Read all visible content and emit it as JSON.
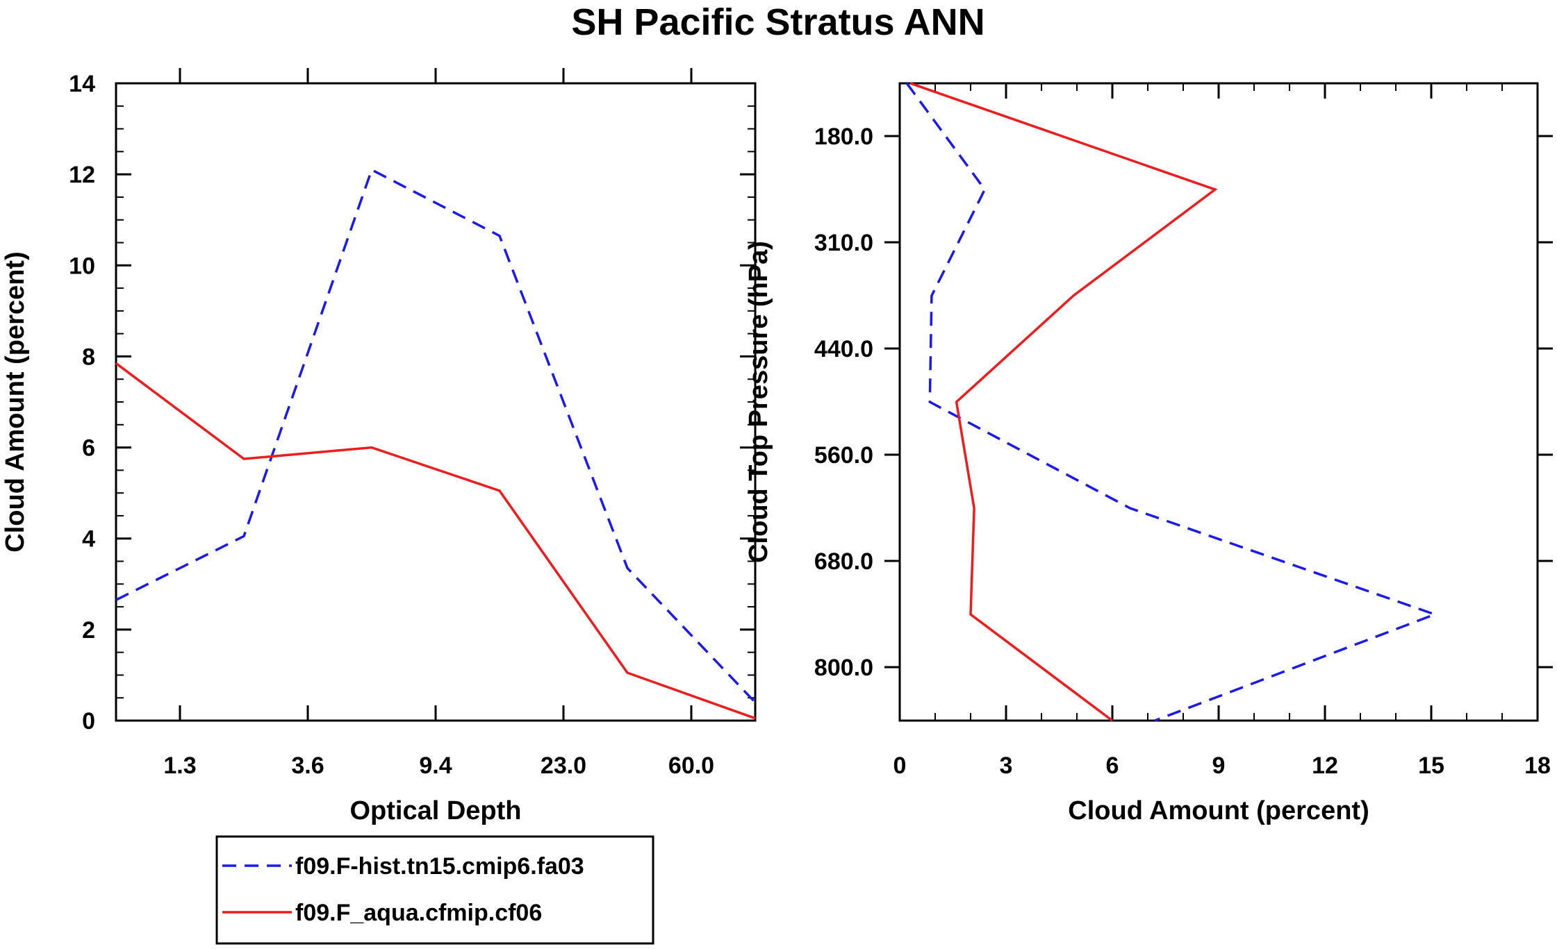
{
  "title": "SH Pacific Stratus ANN",
  "chart_data": [
    {
      "type": "line",
      "xlabel": "Optical Depth",
      "ylabel": "Cloud Amount (percent)",
      "x": [
        0.3,
        2.45,
        6.5,
        16.2,
        41.5,
        100
      ],
      "x_tick_labels": [
        "1.3",
        "3.6",
        "9.4",
        "23.0",
        "60.0"
      ],
      "y_ticks": [
        0,
        2,
        4,
        6,
        8,
        10,
        12,
        14
      ],
      "ylim": [
        0,
        14
      ],
      "series": [
        {
          "name": "f09.F-hist.tn15.cmip6.fa03",
          "color": "#1a1aee",
          "dash": "dashed",
          "values": [
            2.65,
            4.05,
            12.1,
            10.65,
            3.35,
            0.4
          ]
        },
        {
          "name": "f09.F_aqua.cfmip.cf06",
          "color": "#ee1c1c",
          "dash": "solid",
          "values": [
            7.85,
            5.75,
            6.0,
            5.05,
            1.05,
            0.05
          ]
        }
      ]
    },
    {
      "type": "line",
      "orientation": "horizontal",
      "xlabel": "Cloud Amount (percent)",
      "ylabel": "Cloud Top Pressure (hPa)",
      "y_tick_labels": [
        "180.0",
        "310.0",
        "440.0",
        "560.0",
        "680.0",
        "800.0"
      ],
      "x_ticks": [
        0,
        3,
        6,
        9,
        12,
        15,
        18
      ],
      "xlim": [
        0,
        18
      ],
      "series": [
        {
          "name": "f09.F-hist.tn15.cmip6.fa03",
          "color": "#1a1aee",
          "dash": "dashed",
          "values": [
            0.2,
            2.4,
            0.9,
            0.85,
            6.5,
            15.1,
            7.2
          ]
        },
        {
          "name": "f09.F_aqua.cfmip.cf06",
          "color": "#ee1c1c",
          "dash": "solid",
          "values": [
            0.3,
            8.9,
            4.9,
            1.6,
            2.1,
            2.0,
            6.0
          ]
        }
      ]
    }
  ],
  "legend": {
    "items": [
      {
        "label": "f09.F-hist.tn15.cmip6.fa03",
        "color": "#1a1aee",
        "dash": "dashed"
      },
      {
        "label": "f09.F_aqua.cfmip.cf06",
        "color": "#ee1c1c",
        "dash": "solid"
      }
    ]
  }
}
